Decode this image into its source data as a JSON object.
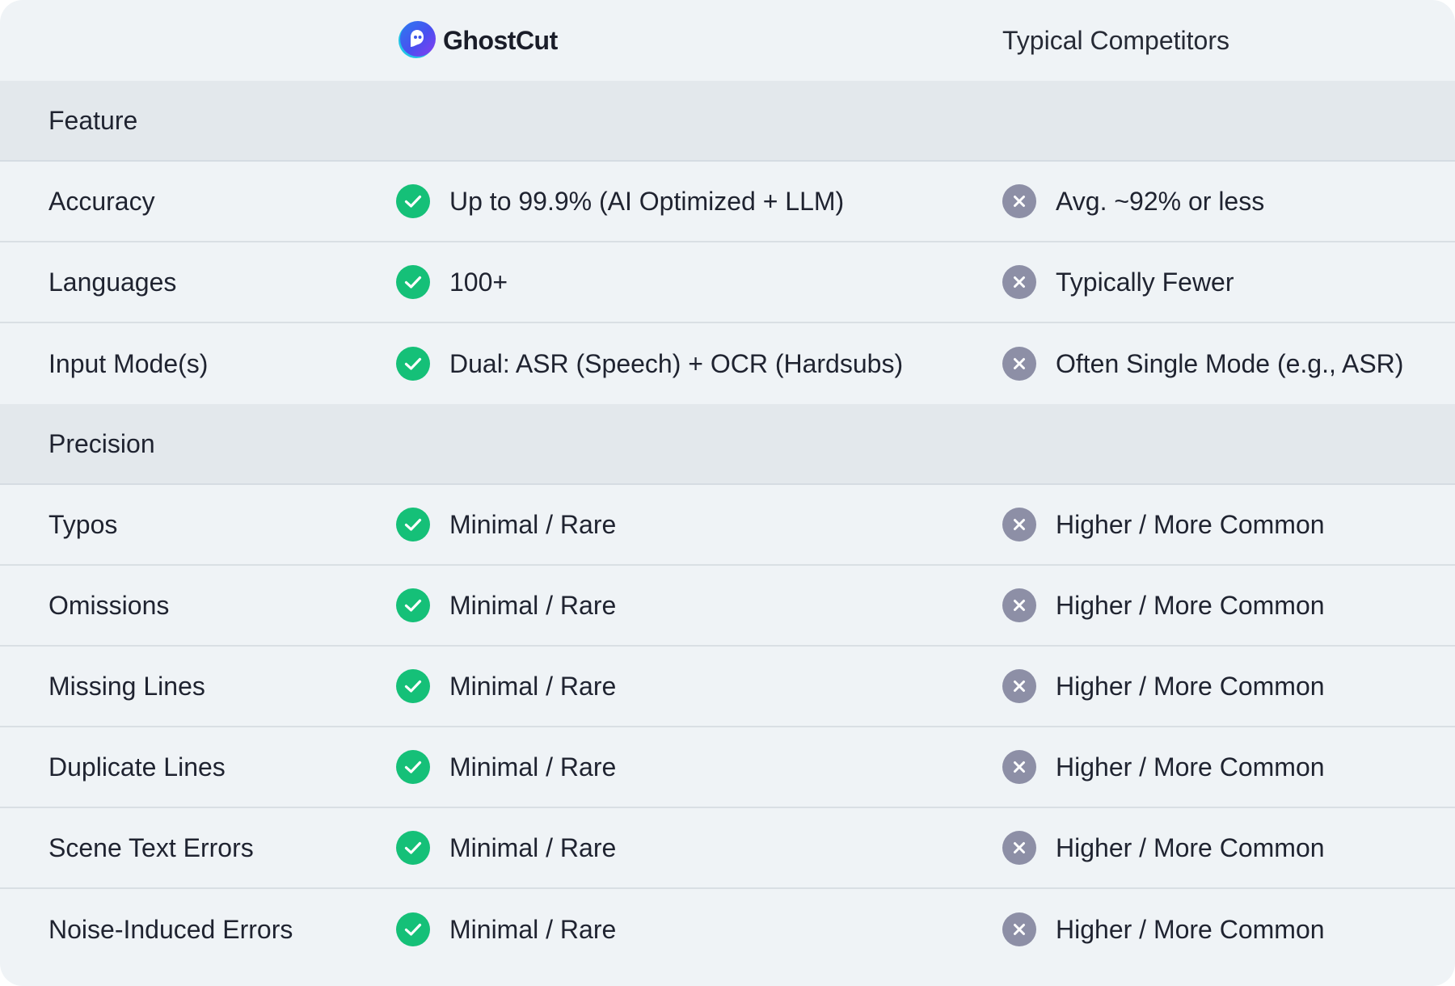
{
  "header": {
    "brand_name": "GhostCut",
    "brand_colors": [
      "#3b55e6",
      "#8a3cf0",
      "#22c3e6"
    ],
    "competitor_label": "Typical Competitors"
  },
  "colors": {
    "check_green": "#15c078",
    "cross_gray": "#8d8fa6",
    "section_bg": "#e3e8ec",
    "card_bg": "#eff3f6"
  },
  "sections": [
    {
      "title": "Feature",
      "rows": [
        {
          "label": "Accuracy",
          "ghostcut": "Up to 99.9% (AI Optimized + LLM)",
          "competitor": "Avg. ~92% or less"
        },
        {
          "label": "Languages",
          "ghostcut": "100+",
          "competitor": "Typically Fewer"
        },
        {
          "label": "Input Mode(s)",
          "ghostcut": "Dual: ASR (Speech) + OCR (Hardsubs)",
          "competitor": "Often Single Mode (e.g., ASR)"
        }
      ]
    },
    {
      "title": "Precision",
      "rows": [
        {
          "label": "Typos",
          "ghostcut": "Minimal / Rare",
          "competitor": "Higher / More Common"
        },
        {
          "label": "Omissions",
          "ghostcut": "Minimal / Rare",
          "competitor": "Higher / More Common"
        },
        {
          "label": "Missing Lines",
          "ghostcut": "Minimal / Rare",
          "competitor": "Higher / More Common"
        },
        {
          "label": "Duplicate Lines",
          "ghostcut": "Minimal / Rare",
          "competitor": "Higher / More Common"
        },
        {
          "label": "Scene Text Errors",
          "ghostcut": "Minimal / Rare",
          "competitor": "Higher / More Common"
        },
        {
          "label": "Noise-Induced Errors",
          "ghostcut": "Minimal / Rare",
          "competitor": "Higher / More Common"
        }
      ]
    }
  ]
}
